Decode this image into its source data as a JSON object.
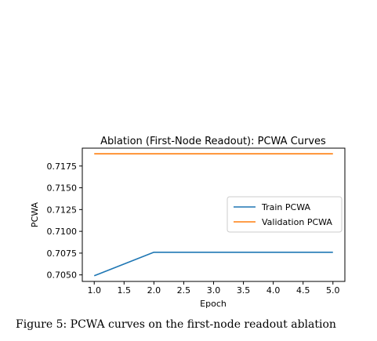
{
  "chart_data": {
    "type": "line",
    "title": "Ablation (First-Node Readout): PCWA Curves",
    "xlabel": "Epoch",
    "ylabel": "PCWA",
    "x": [
      1,
      2,
      3,
      4,
      5
    ],
    "series": [
      {
        "name": "Train PCWA",
        "color": "#1f77b4",
        "values": [
          0.7049,
          0.7076,
          0.7076,
          0.7076,
          0.7076
        ]
      },
      {
        "name": "Validation PCWA",
        "color": "#ff7f0e",
        "values": [
          0.7189,
          0.7189,
          0.7189,
          0.7189,
          0.7189
        ]
      }
    ],
    "xticks": [
      "1.0",
      "1.5",
      "2.0",
      "2.5",
      "3.0",
      "3.5",
      "4.0",
      "4.5",
      "5.0"
    ],
    "yticks": [
      "0.7050",
      "0.7075",
      "0.7100",
      "0.7125",
      "0.7150",
      "0.7175"
    ],
    "xlim": [
      0.8,
      5.2
    ],
    "ylim": [
      0.70425,
      0.71955
    ],
    "legend": "center-right",
    "grid": false
  },
  "caption": "Figure 5: PCWA curves on the first-node readout ablation"
}
